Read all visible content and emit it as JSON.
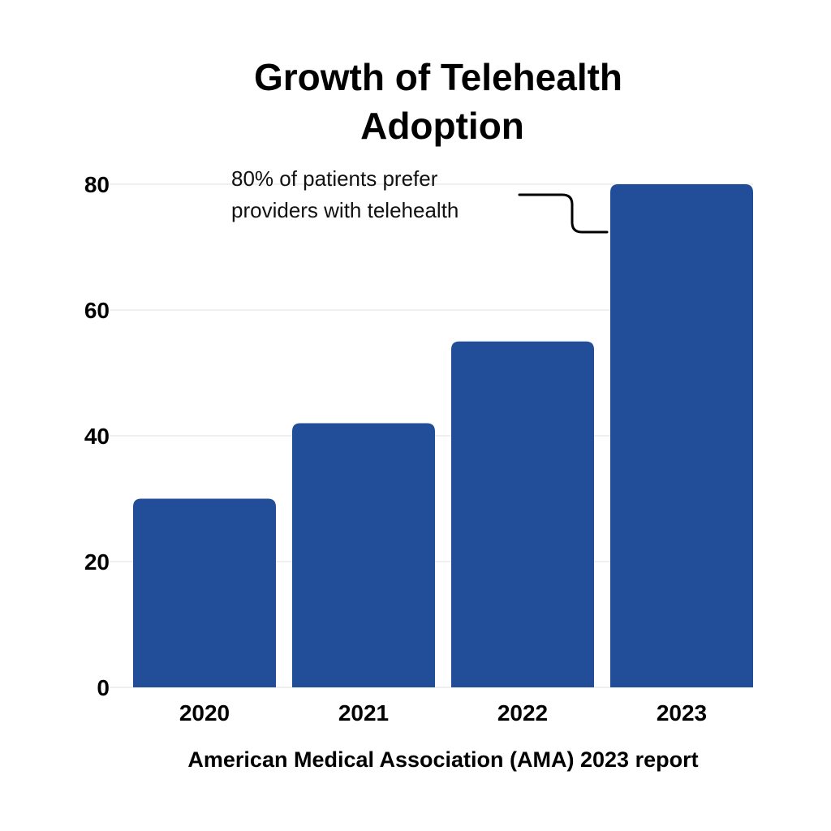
{
  "chart_data": {
    "type": "bar",
    "title": [
      "Growth of Telehealth",
      "Adoption"
    ],
    "categories": [
      "2020",
      "2021",
      "2022",
      "2023"
    ],
    "values": [
      30,
      42,
      55,
      80
    ],
    "ylim": [
      0,
      80
    ],
    "yticks": [
      "0",
      "20",
      "40",
      "60",
      "80"
    ],
    "xlabel": "American Medical Association (AMA) 2023 report",
    "ylabel": "",
    "grid": true,
    "bar_color": "#224E99",
    "annotation": {
      "lines": [
        "80% of patients prefer",
        "providers with telehealth"
      ],
      "target_category": "2023"
    }
  }
}
